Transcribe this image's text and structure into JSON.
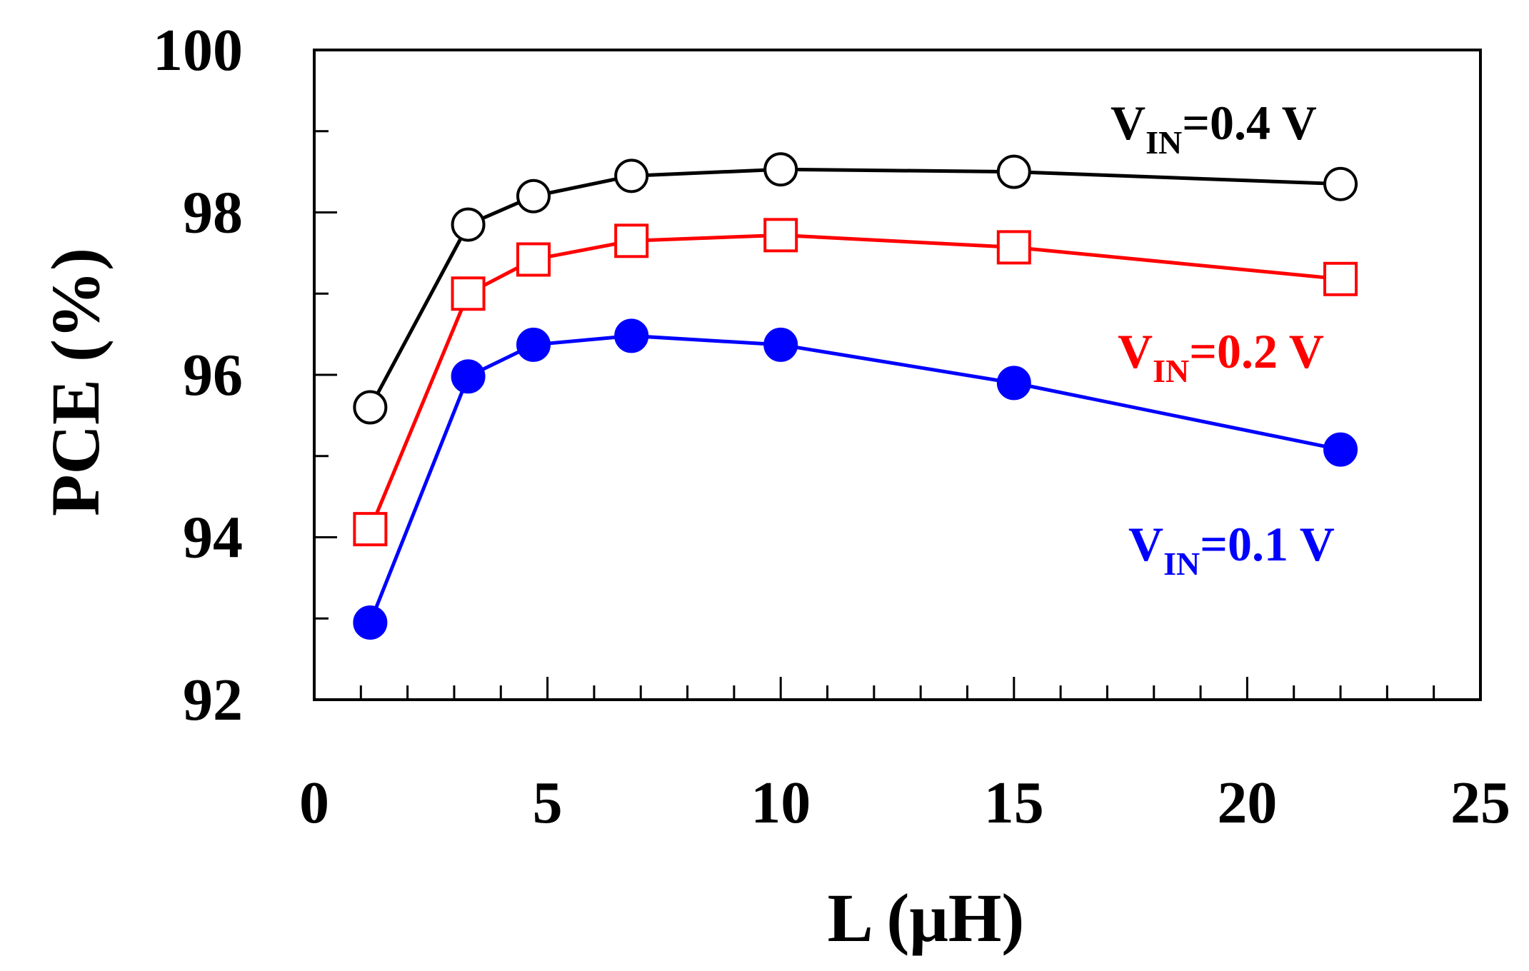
{
  "chart_data": {
    "type": "line",
    "title": "",
    "xlabel": "L (μH)",
    "ylabel": "PCE (%)",
    "xlim": [
      0,
      25
    ],
    "ylim": [
      92,
      100
    ],
    "xticks": [
      "0",
      "5",
      "10",
      "15",
      "20",
      "25"
    ],
    "yticks": [
      "92",
      "94",
      "96",
      "98",
      "100"
    ],
    "grid": false,
    "x": [
      1.2,
      3.3,
      4.7,
      6.8,
      10,
      15,
      22
    ],
    "series": [
      {
        "name": "VIN=0.4 V",
        "label_main": "V",
        "label_sub": "IN",
        "label_rest": "=0.4 V",
        "color": "#000000",
        "marker": "open-circle",
        "values": [
          95.6,
          97.85,
          98.2,
          98.45,
          98.53,
          98.5,
          98.35
        ]
      },
      {
        "name": "VIN=0.2 V",
        "label_main": "V",
        "label_sub": "IN",
        "label_rest": "=0.2 V",
        "color": "#ff0000",
        "marker": "open-square",
        "values": [
          94.1,
          97.0,
          97.42,
          97.65,
          97.72,
          97.57,
          97.18
        ]
      },
      {
        "name": "VIN=0.1 V",
        "label_main": "V",
        "label_sub": "IN",
        "label_rest": "=0.1 V",
        "color": "#0000ff",
        "marker": "filled-circle",
        "values": [
          92.95,
          95.98,
          96.37,
          96.48,
          96.37,
          95.9,
          95.08
        ]
      }
    ]
  }
}
